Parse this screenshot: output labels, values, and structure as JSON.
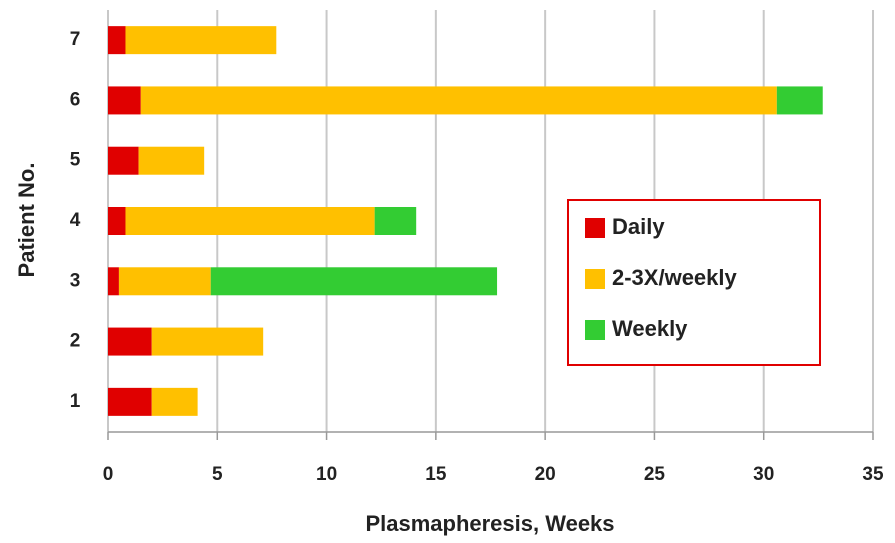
{
  "chart_data": {
    "type": "stacked-barh",
    "xlabel": "Plasmapheresis, Weeks",
    "ylabel": "Patient No.",
    "categories": [
      "1",
      "2",
      "3",
      "4",
      "5",
      "6",
      "7"
    ],
    "series": [
      {
        "name": "Daily",
        "color": "#e00000",
        "values": [
          2.0,
          2.0,
          0.5,
          0.8,
          1.4,
          1.5,
          0.8
        ]
      },
      {
        "name": "2-3X/weekly",
        "color": "#ffc000",
        "values": [
          2.1,
          5.1,
          4.2,
          11.4,
          3.0,
          29.1,
          6.9
        ]
      },
      {
        "name": "Weekly",
        "color": "#33cc33",
        "values": [
          null,
          null,
          13.1,
          1.9,
          null,
          2.1,
          null
        ]
      }
    ],
    "xlim": [
      0,
      35
    ],
    "xticks": [
      0,
      5,
      10,
      15,
      20,
      25,
      30,
      35
    ],
    "grid": true,
    "legend": "right"
  }
}
